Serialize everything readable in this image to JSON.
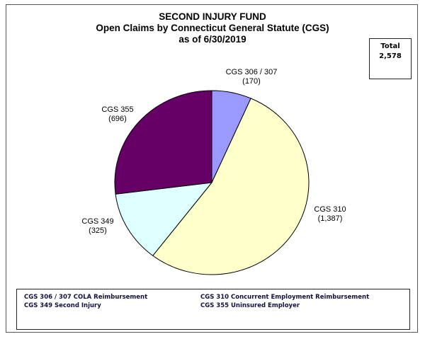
{
  "chart_data": {
    "type": "pie",
    "title": "SECOND INJURY FUND",
    "subtitle": "Open Claims by Connecticut General Statute (CGS)",
    "date_line": "as of 6/30/2019",
    "total_label": "Total",
    "total_value": "2,578",
    "start": "12 o'clock, clockwise",
    "slices": [
      {
        "label": "CGS 306 / 307",
        "value": 170,
        "value_text": "(170)",
        "color": "#9999ff"
      },
      {
        "label": "CGS 310",
        "value": 1387,
        "value_text": "(1,387)",
        "color": "#ffffcc"
      },
      {
        "label": "CGS 349",
        "value": 325,
        "value_text": "(325)",
        "color": "#ddffff"
      },
      {
        "label": "CGS 355",
        "value": 696,
        "value_text": "(696)",
        "color": "#660066"
      }
    ],
    "legend": [
      "CGS 306 / 307 COLA Reimbursement",
      "CGS 310 Concurrent  Employment Reimbursement",
      "CGS 349 Second Injury",
      "CGS 355 Uninsured  Employer"
    ]
  }
}
